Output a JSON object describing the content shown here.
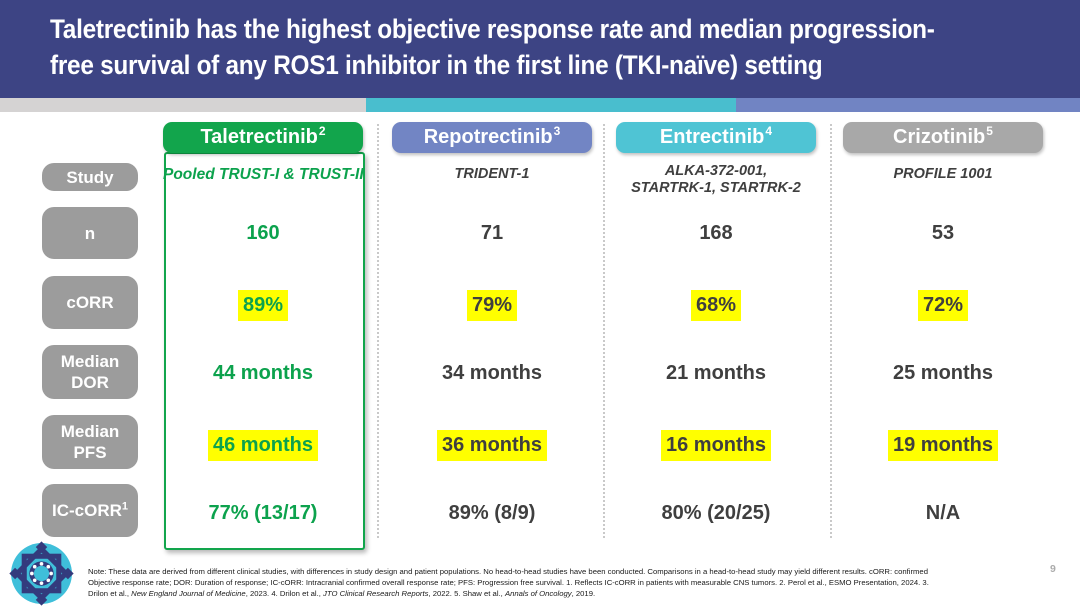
{
  "title": {
    "line1": "Taletrectinib has the highest objective response rate and median progression-",
    "line2": "free survival of any ROS1 inhibitor in the first line (TKI-naïve) setting"
  },
  "colors": {
    "banner_indigo": "#3D4484",
    "stripe_gray": "#D5D3D3",
    "stripe_teal": "#49BECE",
    "stripe_blue": "#7184C3",
    "taletrectinib_green": "#12A54C",
    "repotrectinib_blue": "#7285C4",
    "entrectinib_teal": "#4FC4D4",
    "crizotinib_gray": "#A8A8A8",
    "row_label_gray": "#9C9C9C",
    "highlight_yellow": "#FFFF00",
    "value_text_gray": "#3F3F3F",
    "green_value_text": "#0CA24D"
  },
  "rows": [
    {
      "label": "Study"
    },
    {
      "label": "n"
    },
    {
      "label": "cORR"
    },
    {
      "line1": "Median",
      "line2": "DOR"
    },
    {
      "line1": "Median",
      "line2": "PFS"
    },
    {
      "label": "IC-cORR",
      "sup": "1"
    }
  ],
  "columns": [
    {
      "header": "Taletrectinib",
      "sup": "2",
      "study": "Pooled TRUST-I & TRUST-II",
      "n": "160",
      "corr": "89%",
      "dor": "44 months",
      "pfs": "46 months",
      "ic_corr": "77% (13/17)"
    },
    {
      "header": "Repotrectinib",
      "sup": "3",
      "study": "TRIDENT-1",
      "n": "71",
      "corr": "79%",
      "dor": "34 months",
      "pfs": "36 months",
      "ic_corr": "89% (8/9)"
    },
    {
      "header": "Entrectinib",
      "sup": "4",
      "study_line1": "ALKA-372-001,",
      "study_line2": "STARTRK-1, STARTRK-2",
      "n": "168",
      "corr": "68%",
      "dor": "21 months",
      "pfs": "16 months",
      "ic_corr": "80% (20/25)"
    },
    {
      "header": "Crizotinib",
      "sup": "5",
      "study": "PROFILE 1001",
      "n": "53",
      "corr": "72%",
      "dor": "25 months",
      "pfs": "19 months",
      "ic_corr": "N/A"
    }
  ],
  "footer": {
    "logo_icon": "geometric-star-logo",
    "page_number": "9",
    "note_segments": [
      {
        "text": "Note: These data are derived from different clinical studies, with differences in study design and patient populations. No head-to-head studies have been conducted. Comparisons in a head-to-head study may yield different results. cORR: confirmed Objective response rate; DOR: Duration of response; IC-cORR: Intracranial confirmed overall response rate; PFS: Progression free survival. 1. Reflects IC-cORR in patients with measurable CNS tumors. 2. Perol et al., ESMO Presentation, 2024. 3. Drilon et al., ",
        "italic": false
      },
      {
        "text": "New England Journal of Medicine",
        "italic": true
      },
      {
        "text": ", 2023. 4. Drilon et al., ",
        "italic": false
      },
      {
        "text": "JTO Clinical Research Reports",
        "italic": true
      },
      {
        "text": ", 2022. 5. Shaw et al., ",
        "italic": false
      },
      {
        "text": "Annals of Oncology",
        "italic": true
      },
      {
        "text": ", 2019.",
        "italic": false
      }
    ]
  }
}
